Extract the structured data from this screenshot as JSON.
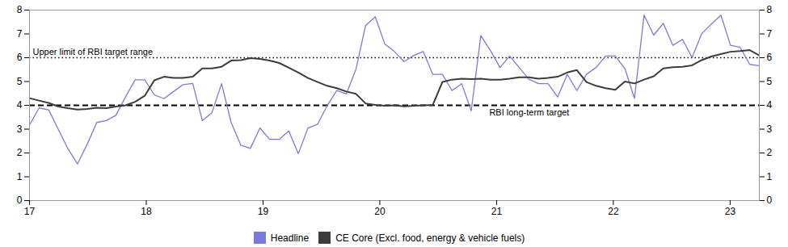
{
  "chart_data": {
    "type": "line",
    "x": [
      17,
      17.082237,
      17.164474,
      17.246711,
      17.328947,
      17.411184,
      17.493421,
      17.575658,
      17.657895,
      17.740132,
      17.822368,
      17.904605,
      17.986842,
      18.069079,
      18.151316,
      18.233553,
      18.315789,
      18.398026,
      18.480263,
      18.5625,
      18.644737,
      18.726974,
      18.809211,
      18.891447,
      18.973684,
      19.055921,
      19.138158,
      19.220395,
      19.302632,
      19.384868,
      19.467105,
      19.549342,
      19.631579,
      19.713816,
      19.796053,
      19.878289,
      19.960526,
      20.042763,
      20.125,
      20.207237,
      20.289474,
      20.371711,
      20.453947,
      20.536184,
      20.618421,
      20.700658,
      20.782895,
      20.865132,
      20.947368,
      21.029605,
      21.111842,
      21.194079,
      21.276316,
      21.358553,
      21.440789,
      21.523026,
      21.605263,
      21.6875,
      21.769737,
      21.851974,
      21.934211,
      22.016447,
      22.098684,
      22.180921,
      22.263158,
      22.345395,
      22.427632,
      22.509868,
      22.592105,
      22.674342,
      22.756579,
      22.838816,
      22.921053,
      23.003289,
      23.085526,
      23.167763,
      23.25
    ],
    "series": [
      {
        "name": "Headline",
        "color": "#7b7bdb",
        "values": [
          3.17,
          3.89,
          3.81,
          2.99,
          2.18,
          1.54,
          2.36,
          3.28,
          3.36,
          3.58,
          4.35,
          5.07,
          5.07,
          4.44,
          4.28,
          4.58,
          4.87,
          4.92,
          3.36,
          3.69,
          4.91,
          3.28,
          2.33,
          2.19,
          3.05,
          2.57,
          2.57,
          2.92,
          1.97,
          3.05,
          3.21,
          3.99,
          4.62,
          4.48,
          5.52,
          7.35,
          7.72,
          6.58,
          6.26,
          5.84,
          6.09,
          6.26,
          5.3,
          5.3,
          4.62,
          4.91,
          3.77,
          6.93,
          6.3,
          5.59,
          6.07,
          5.59,
          5.1,
          4.91,
          4.91,
          4.35,
          5.3,
          4.62,
          5.3,
          5.59,
          6.07,
          6.07,
          5.55,
          4.29,
          7.79,
          6.95,
          7.44,
          6.52,
          6.77,
          6.01,
          7.01,
          7.41,
          7.79,
          6.52,
          6.44,
          5.72,
          5.66
        ]
      },
      {
        "name": "CE Core (Excl. food, energy & vehicle fuels)",
        "color": "#3c3c3c",
        "values": [
          4.3,
          4.2,
          4.1,
          3.95,
          3.88,
          3.82,
          3.85,
          3.9,
          3.88,
          3.95,
          4.0,
          4.15,
          4.4,
          5.05,
          5.2,
          5.15,
          5.15,
          5.2,
          5.55,
          5.55,
          5.62,
          5.88,
          5.9,
          5.98,
          5.95,
          5.88,
          5.78,
          5.58,
          5.38,
          5.15,
          4.98,
          4.82,
          4.72,
          4.58,
          4.48,
          4.08,
          4.02,
          3.98,
          4.0,
          3.96,
          3.98,
          4.0,
          4.02,
          4.98,
          5.08,
          5.12,
          5.1,
          5.12,
          5.08,
          5.08,
          5.12,
          5.18,
          5.18,
          5.12,
          5.15,
          5.2,
          5.38,
          5.48,
          4.98,
          4.82,
          4.72,
          4.65,
          5.0,
          4.92,
          5.08,
          5.22,
          5.55,
          5.6,
          5.62,
          5.68,
          5.9,
          6.05,
          6.15,
          6.25,
          6.28,
          6.32,
          6.1
        ]
      }
    ],
    "xlim": [
      17,
      23.25
    ],
    "xticks": [
      17,
      18,
      19,
      20,
      21,
      22,
      23
    ],
    "ylim": [
      0,
      8
    ],
    "yticks": [
      0,
      1,
      2,
      3,
      4,
      5,
      6,
      7,
      8
    ],
    "annotations": [
      {
        "text": "Upper limit of RBI target range",
        "y": 6,
        "line_style": "dotted"
      },
      {
        "text": "RBI long-term target",
        "y": 4,
        "line_style": "dashed"
      }
    ],
    "grid": false,
    "legend": "bottom"
  }
}
